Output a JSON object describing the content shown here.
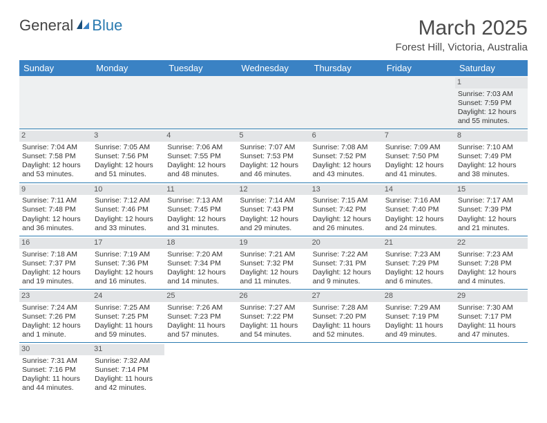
{
  "logo": {
    "text_dark": "General",
    "text_blue": "Blue"
  },
  "title": "March 2025",
  "location": "Forest Hill, Victoria, Australia",
  "colors": {
    "header_bg": "#3a82c4",
    "header_text": "#ffffff",
    "daynum_bg": "#e3e5e7",
    "rule": "#2a7ab0",
    "firstrow_bg": "#eef0f1"
  },
  "weekdays": [
    "Sunday",
    "Monday",
    "Tuesday",
    "Wednesday",
    "Thursday",
    "Friday",
    "Saturday"
  ],
  "weeks": [
    [
      null,
      null,
      null,
      null,
      null,
      null,
      {
        "n": "1",
        "sr": "Sunrise: 7:03 AM",
        "ss": "Sunset: 7:59 PM",
        "dl": "Daylight: 12 hours and 55 minutes."
      }
    ],
    [
      {
        "n": "2",
        "sr": "Sunrise: 7:04 AM",
        "ss": "Sunset: 7:58 PM",
        "dl": "Daylight: 12 hours and 53 minutes."
      },
      {
        "n": "3",
        "sr": "Sunrise: 7:05 AM",
        "ss": "Sunset: 7:56 PM",
        "dl": "Daylight: 12 hours and 51 minutes."
      },
      {
        "n": "4",
        "sr": "Sunrise: 7:06 AM",
        "ss": "Sunset: 7:55 PM",
        "dl": "Daylight: 12 hours and 48 minutes."
      },
      {
        "n": "5",
        "sr": "Sunrise: 7:07 AM",
        "ss": "Sunset: 7:53 PM",
        "dl": "Daylight: 12 hours and 46 minutes."
      },
      {
        "n": "6",
        "sr": "Sunrise: 7:08 AM",
        "ss": "Sunset: 7:52 PM",
        "dl": "Daylight: 12 hours and 43 minutes."
      },
      {
        "n": "7",
        "sr": "Sunrise: 7:09 AM",
        "ss": "Sunset: 7:50 PM",
        "dl": "Daylight: 12 hours and 41 minutes."
      },
      {
        "n": "8",
        "sr": "Sunrise: 7:10 AM",
        "ss": "Sunset: 7:49 PM",
        "dl": "Daylight: 12 hours and 38 minutes."
      }
    ],
    [
      {
        "n": "9",
        "sr": "Sunrise: 7:11 AM",
        "ss": "Sunset: 7:48 PM",
        "dl": "Daylight: 12 hours and 36 minutes."
      },
      {
        "n": "10",
        "sr": "Sunrise: 7:12 AM",
        "ss": "Sunset: 7:46 PM",
        "dl": "Daylight: 12 hours and 33 minutes."
      },
      {
        "n": "11",
        "sr": "Sunrise: 7:13 AM",
        "ss": "Sunset: 7:45 PM",
        "dl": "Daylight: 12 hours and 31 minutes."
      },
      {
        "n": "12",
        "sr": "Sunrise: 7:14 AM",
        "ss": "Sunset: 7:43 PM",
        "dl": "Daylight: 12 hours and 29 minutes."
      },
      {
        "n": "13",
        "sr": "Sunrise: 7:15 AM",
        "ss": "Sunset: 7:42 PM",
        "dl": "Daylight: 12 hours and 26 minutes."
      },
      {
        "n": "14",
        "sr": "Sunrise: 7:16 AM",
        "ss": "Sunset: 7:40 PM",
        "dl": "Daylight: 12 hours and 24 minutes."
      },
      {
        "n": "15",
        "sr": "Sunrise: 7:17 AM",
        "ss": "Sunset: 7:39 PM",
        "dl": "Daylight: 12 hours and 21 minutes."
      }
    ],
    [
      {
        "n": "16",
        "sr": "Sunrise: 7:18 AM",
        "ss": "Sunset: 7:37 PM",
        "dl": "Daylight: 12 hours and 19 minutes."
      },
      {
        "n": "17",
        "sr": "Sunrise: 7:19 AM",
        "ss": "Sunset: 7:36 PM",
        "dl": "Daylight: 12 hours and 16 minutes."
      },
      {
        "n": "18",
        "sr": "Sunrise: 7:20 AM",
        "ss": "Sunset: 7:34 PM",
        "dl": "Daylight: 12 hours and 14 minutes."
      },
      {
        "n": "19",
        "sr": "Sunrise: 7:21 AM",
        "ss": "Sunset: 7:32 PM",
        "dl": "Daylight: 12 hours and 11 minutes."
      },
      {
        "n": "20",
        "sr": "Sunrise: 7:22 AM",
        "ss": "Sunset: 7:31 PM",
        "dl": "Daylight: 12 hours and 9 minutes."
      },
      {
        "n": "21",
        "sr": "Sunrise: 7:23 AM",
        "ss": "Sunset: 7:29 PM",
        "dl": "Daylight: 12 hours and 6 minutes."
      },
      {
        "n": "22",
        "sr": "Sunrise: 7:23 AM",
        "ss": "Sunset: 7:28 PM",
        "dl": "Daylight: 12 hours and 4 minutes."
      }
    ],
    [
      {
        "n": "23",
        "sr": "Sunrise: 7:24 AM",
        "ss": "Sunset: 7:26 PM",
        "dl": "Daylight: 12 hours and 1 minute."
      },
      {
        "n": "24",
        "sr": "Sunrise: 7:25 AM",
        "ss": "Sunset: 7:25 PM",
        "dl": "Daylight: 11 hours and 59 minutes."
      },
      {
        "n": "25",
        "sr": "Sunrise: 7:26 AM",
        "ss": "Sunset: 7:23 PM",
        "dl": "Daylight: 11 hours and 57 minutes."
      },
      {
        "n": "26",
        "sr": "Sunrise: 7:27 AM",
        "ss": "Sunset: 7:22 PM",
        "dl": "Daylight: 11 hours and 54 minutes."
      },
      {
        "n": "27",
        "sr": "Sunrise: 7:28 AM",
        "ss": "Sunset: 7:20 PM",
        "dl": "Daylight: 11 hours and 52 minutes."
      },
      {
        "n": "28",
        "sr": "Sunrise: 7:29 AM",
        "ss": "Sunset: 7:19 PM",
        "dl": "Daylight: 11 hours and 49 minutes."
      },
      {
        "n": "29",
        "sr": "Sunrise: 7:30 AM",
        "ss": "Sunset: 7:17 PM",
        "dl": "Daylight: 11 hours and 47 minutes."
      }
    ],
    [
      {
        "n": "30",
        "sr": "Sunrise: 7:31 AM",
        "ss": "Sunset: 7:16 PM",
        "dl": "Daylight: 11 hours and 44 minutes."
      },
      {
        "n": "31",
        "sr": "Sunrise: 7:32 AM",
        "ss": "Sunset: 7:14 PM",
        "dl": "Daylight: 11 hours and 42 minutes."
      },
      null,
      null,
      null,
      null,
      null
    ]
  ]
}
